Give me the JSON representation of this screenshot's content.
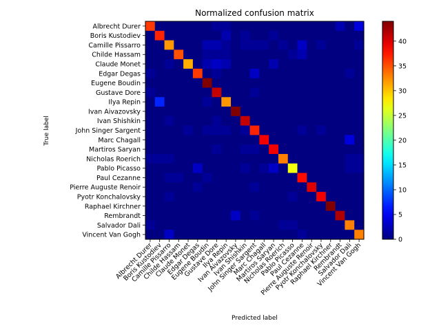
{
  "chart_data": {
    "type": "heatmap",
    "title": "Normalized confusion matrix",
    "xlabel": "Predicted label",
    "ylabel": "True label",
    "labels": [
      "Albrecht Durer",
      "Boris Kustodiev",
      "Camille Pissarro",
      "Childe Hassam",
      "Claude Monet",
      "Edgar Degas",
      "Eugene Boudin",
      "Gustave Dore",
      "Ilya Repin",
      "Ivan Aivazovsky",
      "Ivan Shishkin",
      "John Singer Sargent",
      "Marc Chagall",
      "Martiros Saryan",
      "Nicholas Roerich",
      "Pablo Picasso",
      "Paul Cezanne",
      "Pierre Auguste Renoir",
      "Pyotr Konchalovsky",
      "Raphael Kirchner",
      "Rembrandt",
      "Salvador Dali",
      "Vincent Van Gogh"
    ],
    "colormap": "jet",
    "colorbar": {
      "min": 0,
      "max": 44,
      "ticks": [
        0,
        5,
        10,
        15,
        20,
        25,
        30,
        35,
        40
      ]
    },
    "matrix": [
      [
        36,
        0,
        0,
        0,
        0,
        0,
        0,
        1,
        1,
        0,
        0,
        0,
        0,
        0,
        0,
        0,
        0,
        0,
        0,
        0,
        2,
        0,
        4
      ],
      [
        0,
        37,
        0,
        0,
        0,
        0,
        0,
        0,
        2,
        0,
        1,
        0,
        0,
        1,
        0,
        0,
        0,
        0,
        0,
        0,
        0,
        0,
        0
      ],
      [
        0,
        0,
        32,
        0,
        0,
        0,
        2,
        2,
        1,
        0,
        1,
        1,
        1,
        0,
        1,
        0,
        3,
        0,
        1,
        0,
        0,
        0,
        1
      ],
      [
        0,
        0,
        0,
        35,
        0,
        0,
        1,
        1,
        1,
        0,
        0,
        0,
        0,
        0,
        0,
        1,
        2,
        0,
        0,
        0,
        0,
        0,
        0
      ],
      [
        0,
        0,
        1,
        0,
        31,
        0,
        2,
        3,
        2,
        0,
        0,
        0,
        0,
        2,
        0,
        0,
        0,
        0,
        0,
        0,
        0,
        0,
        0
      ],
      [
        1,
        0,
        0,
        0,
        0,
        36,
        0,
        1,
        0,
        0,
        0,
        3,
        0,
        0,
        0,
        0,
        0,
        0,
        0,
        0,
        0,
        1,
        0
      ],
      [
        0,
        0,
        0,
        0,
        0,
        0,
        44,
        0,
        0,
        0,
        0,
        0,
        0,
        0,
        0,
        0,
        0,
        0,
        0,
        0,
        0,
        0,
        0
      ],
      [
        1,
        0,
        0,
        0,
        0,
        0,
        0,
        41,
        0,
        0,
        0,
        1,
        0,
        0,
        0,
        0,
        0,
        0,
        0,
        0,
        0,
        0,
        0
      ],
      [
        0,
        7,
        0,
        0,
        0,
        0,
        1,
        0,
        32,
        0,
        0,
        0,
        0,
        0,
        0,
        0,
        0,
        0,
        0,
        0,
        0,
        0,
        0
      ],
      [
        0,
        0,
        0,
        0,
        0,
        0,
        0,
        0,
        0,
        44,
        0,
        0,
        0,
        0,
        0,
        0,
        0,
        0,
        0,
        0,
        0,
        0,
        0
      ],
      [
        0,
        0,
        1,
        0,
        0,
        0,
        0,
        1,
        0,
        0,
        41,
        0,
        0,
        0,
        0,
        0,
        0,
        0,
        0,
        0,
        0,
        0,
        0
      ],
      [
        0,
        0,
        0,
        0,
        1,
        0,
        1,
        1,
        1,
        0,
        1,
        37,
        0,
        0,
        0,
        0,
        1,
        0,
        1,
        0,
        0,
        0,
        0
      ],
      [
        0,
        0,
        0,
        0,
        0,
        0,
        0,
        0,
        0,
        0,
        0,
        0,
        39,
        0,
        0,
        0,
        0,
        0,
        0,
        0,
        0,
        4,
        0
      ],
      [
        0,
        0,
        0,
        0,
        0,
        0,
        0,
        1,
        0,
        0,
        1,
        1,
        0,
        39,
        0,
        0,
        0,
        0,
        0,
        0,
        0,
        0,
        0
      ],
      [
        1,
        1,
        1,
        0,
        0,
        0,
        0,
        0,
        0,
        0,
        0,
        0,
        0,
        0,
        33,
        0,
        0,
        0,
        0,
        0,
        0,
        1,
        1
      ],
      [
        0,
        0,
        0,
        0,
        0,
        3,
        0,
        0,
        0,
        0,
        1,
        0,
        1,
        3,
        0,
        27,
        0,
        0,
        0,
        0,
        0,
        1,
        1
      ],
      [
        0,
        0,
        1,
        1,
        0,
        0,
        1,
        0,
        0,
        0,
        0,
        0,
        0,
        0,
        0,
        0,
        38,
        0,
        0,
        0,
        0,
        0,
        0
      ],
      [
        0,
        0,
        0,
        0,
        0,
        1,
        0,
        0,
        0,
        0,
        0,
        1,
        0,
        0,
        0,
        0,
        0,
        40,
        0,
        0,
        0,
        0,
        0
      ],
      [
        0,
        0,
        1,
        0,
        0,
        0,
        0,
        0,
        0,
        0,
        0,
        0,
        0,
        0,
        0,
        1,
        0,
        0,
        39,
        0,
        0,
        0,
        0
      ],
      [
        0,
        0,
        0,
        0,
        0,
        0,
        0,
        0,
        0,
        0,
        0,
        0,
        0,
        0,
        0,
        0,
        0,
        0,
        0,
        44,
        0,
        0,
        0
      ],
      [
        0,
        0,
        0,
        0,
        0,
        0,
        0,
        0,
        0,
        3,
        0,
        1,
        0,
        0,
        0,
        0,
        0,
        0,
        0,
        0,
        42,
        0,
        0
      ],
      [
        1,
        0,
        0,
        0,
        0,
        0,
        0,
        0,
        0,
        0,
        0,
        0,
        0,
        0,
        1,
        1,
        0,
        0,
        0,
        0,
        0,
        33,
        0
      ],
      [
        0,
        0,
        3,
        0,
        0,
        0,
        0,
        0,
        0,
        0,
        0,
        0,
        0,
        0,
        0,
        0,
        1,
        0,
        0,
        0,
        0,
        0,
        33
      ]
    ]
  }
}
